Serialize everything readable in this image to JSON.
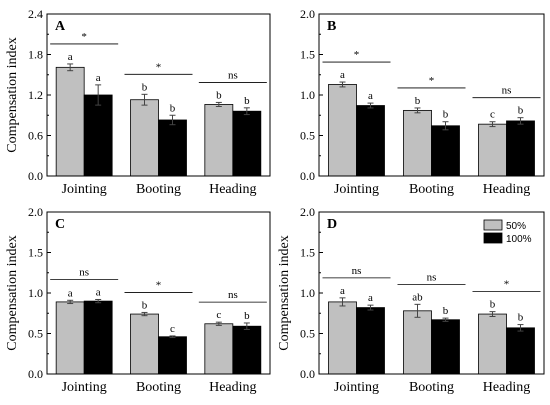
{
  "legend": {
    "items": [
      "50%",
      "100%"
    ]
  },
  "colors": {
    "series_50": "#c0c0c0",
    "series_100": "#000000",
    "axis": "#000000"
  },
  "chart_data": [
    {
      "panel": "A",
      "type": "bar",
      "categories": [
        "Jointing",
        "Booting",
        "Heading"
      ],
      "ylabel": "Compensation index",
      "ylim": [
        0,
        2.4
      ],
      "yticks": [
        "0.0",
        "0.6",
        "1.2",
        "1.8",
        "2.4"
      ],
      "series": [
        {
          "name": "50%",
          "values": [
            1.61,
            1.13,
            1.06
          ],
          "errors": [
            0.05,
            0.08,
            0.03
          ],
          "letters": [
            "a",
            "b",
            "b"
          ]
        },
        {
          "name": "100%",
          "values": [
            1.2,
            0.83,
            0.96
          ],
          "errors": [
            0.15,
            0.07,
            0.05
          ],
          "letters": [
            "a",
            "b",
            "b"
          ]
        }
      ],
      "significance": [
        "*",
        "*",
        "ns"
      ]
    },
    {
      "panel": "B",
      "type": "bar",
      "categories": [
        "Jointing",
        "Booting",
        "Heading"
      ],
      "ylabel": "",
      "ylim": [
        0,
        2.0
      ],
      "yticks": [
        "0.0",
        "0.5",
        "1.0",
        "1.5",
        "2.0"
      ],
      "series": [
        {
          "name": "50%",
          "values": [
            1.13,
            0.81,
            0.64
          ],
          "errors": [
            0.03,
            0.03,
            0.03
          ],
          "letters": [
            "a",
            "b",
            "c"
          ]
        },
        {
          "name": "100%",
          "values": [
            0.87,
            0.62,
            0.68
          ],
          "errors": [
            0.03,
            0.05,
            0.04
          ],
          "letters": [
            "a",
            "b",
            "b"
          ]
        }
      ],
      "significance": [
        "*",
        "*",
        "ns"
      ]
    },
    {
      "panel": "C",
      "type": "bar",
      "categories": [
        "Jointing",
        "Booting",
        "Heading"
      ],
      "ylabel": "Compensation index",
      "ylim": [
        0,
        2.0
      ],
      "yticks": [
        "0.0",
        "0.5",
        "1.0",
        "1.5",
        "2.0"
      ],
      "series": [
        {
          "name": "50%",
          "values": [
            0.89,
            0.74,
            0.62
          ],
          "errors": [
            0.02,
            0.02,
            0.02
          ],
          "letters": [
            "a",
            "b",
            "c"
          ]
        },
        {
          "name": "100%",
          "values": [
            0.9,
            0.46,
            0.59
          ],
          "errors": [
            0.02,
            0.01,
            0.04
          ],
          "letters": [
            "a",
            "c",
            "b"
          ]
        }
      ],
      "significance": [
        "ns",
        "*",
        "ns"
      ]
    },
    {
      "panel": "D",
      "type": "bar",
      "categories": [
        "Jointing",
        "Booting",
        "Heading"
      ],
      "ylabel": "Compensation index",
      "ylim": [
        0,
        2.0
      ],
      "yticks": [
        "0.0",
        "0.5",
        "1.0",
        "1.5",
        "2.0"
      ],
      "series": [
        {
          "name": "50%",
          "values": [
            0.89,
            0.78,
            0.74
          ],
          "errors": [
            0.05,
            0.08,
            0.03
          ],
          "letters": [
            "a",
            "ab",
            "b"
          ]
        },
        {
          "name": "100%",
          "values": [
            0.82,
            0.67,
            0.57
          ],
          "errors": [
            0.03,
            0.02,
            0.04
          ],
          "letters": [
            "a",
            "b",
            "b"
          ]
        }
      ],
      "significance": [
        "ns",
        "ns",
        "*"
      ]
    }
  ]
}
